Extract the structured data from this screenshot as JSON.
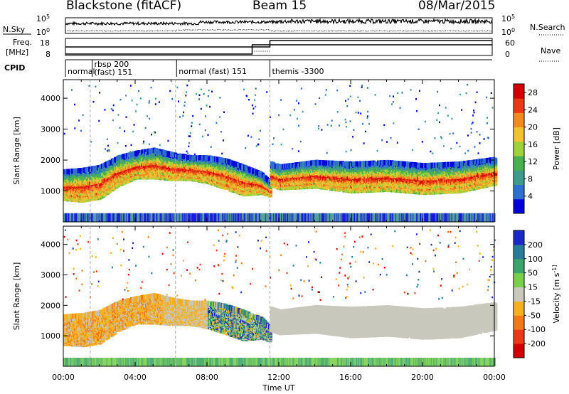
{
  "header": {
    "station": "Blackstone (fitACF)",
    "beam": "Beam 15",
    "date": "08/Mar/2015"
  },
  "params": {
    "nsky_label": "N.Sky",
    "nsearch_label": "N.Search",
    "freq_label_1": "Freq.",
    "freq_label_2": "[MHz]",
    "nave_label": "Nave",
    "cpid_label": "CPID",
    "left_top_ticks": [
      "10^5",
      "10^0"
    ],
    "right_top_ticks": [
      "10^5",
      "10^0"
    ],
    "freq_ticks": [
      "18",
      "8"
    ],
    "nave_ticks": [
      "60",
      "0"
    ],
    "cpid_segments": [
      {
        "start": 0.0,
        "end": 1.5,
        "label": "normal"
      },
      {
        "start": 1.5,
        "end": 6.25,
        "label": "rbsp 200\n(fast) 151"
      },
      {
        "start": 6.25,
        "end": 11.5,
        "label": "normal (fast)  151"
      },
      {
        "start": 11.5,
        "end": 24.0,
        "label": "themis -3300"
      }
    ],
    "freq_step_hour": 10.5,
    "nave_step_hour": 11.5
  },
  "chart_data": [
    {
      "type": "heatmap",
      "panel": "power",
      "ylabel": "Slant Range [km]",
      "ylim": [
        0,
        4600
      ],
      "yticks": [
        1000,
        2000,
        3000,
        4000
      ],
      "xlim": [
        0,
        24
      ],
      "colorbar_label": "Power [dB]",
      "colorbar_ticks": [
        4,
        8,
        12,
        16,
        20,
        24,
        28
      ],
      "colorbar_range": [
        0,
        30
      ],
      "colors": [
        "#0000dd",
        "#2f6fd0",
        "#3e9a8a",
        "#48b04c",
        "#9fd23a",
        "#f2c233",
        "#f28a22",
        "#e83a16",
        "#d40000"
      ],
      "bands": [
        {
          "x": [
            0,
            1,
            2,
            3,
            4,
            5,
            6,
            7,
            8,
            9,
            10,
            11,
            11.5
          ],
          "center": [
            1250,
            1250,
            1350,
            1700,
            1900,
            1950,
            1850,
            1800,
            1750,
            1600,
            1400,
            1300,
            1100
          ],
          "width": [
            900,
            1000,
            1000,
            900,
            800,
            900,
            800,
            700,
            800,
            900,
            900,
            600,
            400
          ]
        },
        {
          "x": [
            11.5,
            12,
            14,
            16,
            18,
            20,
            22,
            24
          ],
          "center": [
            1600,
            1500,
            1600,
            1500,
            1550,
            1450,
            1500,
            1700
          ],
          "width": [
            700,
            700,
            800,
            900,
            900,
            900,
            900,
            800
          ]
        }
      ]
    },
    {
      "type": "heatmap",
      "panel": "velocity",
      "xlabel": "Time UT",
      "ylabel": "Slant Range [km]",
      "ylim": [
        0,
        4600
      ],
      "yticks": [
        1000,
        2000,
        3000,
        4000
      ],
      "xlim": [
        0,
        24
      ],
      "xticks": [
        "00:00",
        "04:00",
        "08:00",
        "12:00",
        "16:00",
        "20:00",
        "00:00"
      ],
      "colorbar_label": "Velocity [m s^-1]",
      "colorbar_ticks": [
        200,
        100,
        50,
        15,
        -15,
        -50,
        -100,
        -200
      ],
      "colors": [
        "#1a28c8",
        "#2a7a9a",
        "#3aa46a",
        "#7ad04a",
        "#c8c8bc",
        "#f4b020",
        "#f07a18",
        "#e83a18",
        "#d40000"
      ],
      "bands": [
        {
          "x": [
            0,
            1,
            2,
            3,
            4,
            5,
            6,
            7,
            8,
            9,
            10,
            11,
            11.5
          ],
          "center": [
            1250,
            1250,
            1350,
            1700,
            1900,
            1950,
            1850,
            1800,
            1750,
            1600,
            1400,
            1300,
            1100
          ],
          "width": [
            900,
            1000,
            1000,
            900,
            800,
            900,
            800,
            700,
            800,
            900,
            900,
            600,
            400
          ]
        },
        {
          "x": [
            11.5,
            12,
            14,
            16,
            18,
            20,
            22,
            24
          ],
          "center": [
            1600,
            1500,
            1600,
            1500,
            1550,
            1450,
            1500,
            1700
          ],
          "width": [
            700,
            700,
            800,
            900,
            900,
            900,
            900,
            800
          ]
        }
      ]
    }
  ]
}
